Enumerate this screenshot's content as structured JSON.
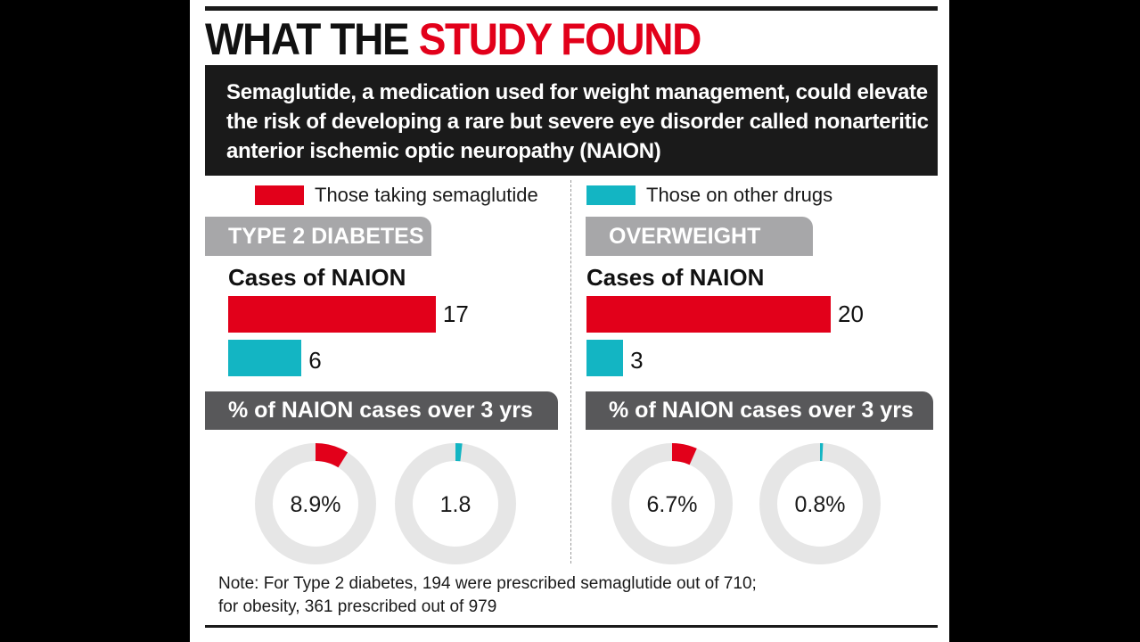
{
  "header": {
    "title_part1": "WHAT THE",
    "title_part2": "STUDY FOUND",
    "subtitle": "Semaglutide, a medication used for weight management, could elevate the risk of developing a rare but severe eye disorder called nonarteritic anterior ischemic optic neuropathy (NAION)"
  },
  "legend": {
    "semaglutide": "Those taking semaglutide",
    "other": "Those on other drugs"
  },
  "colors": {
    "semaglutide": "#e2001a",
    "other": "#13b5c3",
    "donut_track": "#e6e6e6",
    "tab_light": "#a7a7a9",
    "tab_dark": "#58585a"
  },
  "panels": {
    "diabetes": {
      "heading": "TYPE 2 DIABETES",
      "cases_label": "Cases of NAION",
      "pct_heading": "% of NAION cases over 3 yrs"
    },
    "overweight": {
      "heading": "OVERWEIGHT",
      "cases_label": "Cases of NAION",
      "pct_heading": "% of NAION cases over 3 yrs"
    }
  },
  "chart_data": [
    {
      "type": "bar",
      "title": "Cases of NAION",
      "group": "TYPE 2 DIABETES",
      "orientation": "horizontal",
      "series": [
        {
          "name": "Those taking semaglutide",
          "values": [
            17
          ],
          "labels": [
            "17"
          ]
        },
        {
          "name": "Those on other drugs",
          "values": [
            6
          ],
          "labels": [
            "6"
          ]
        }
      ],
      "xlim": [
        0,
        20
      ]
    },
    {
      "type": "bar",
      "title": "Cases of NAION",
      "group": "OVERWEIGHT",
      "orientation": "horizontal",
      "series": [
        {
          "name": "Those taking semaglutide",
          "values": [
            20
          ],
          "labels": [
            "20"
          ]
        },
        {
          "name": "Those on other drugs",
          "values": [
            3
          ],
          "labels": [
            "3"
          ]
        }
      ],
      "xlim": [
        0,
        20
      ]
    },
    {
      "type": "pie",
      "title": "% of NAION cases over 3 yrs",
      "group": "TYPE 2 DIABETES",
      "slices": [
        {
          "name": "Those taking semaglutide",
          "value": 8.9,
          "label": "8.9%"
        },
        {
          "name": "Those on other drugs",
          "value": 1.8,
          "label": "1.8"
        }
      ]
    },
    {
      "type": "pie",
      "title": "% of NAION cases over 3 yrs",
      "group": "OVERWEIGHT",
      "slices": [
        {
          "name": "Those taking semaglutide",
          "value": 6.7,
          "label": "6.7%"
        },
        {
          "name": "Those on other drugs",
          "value": 0.8,
          "label": "0.8%"
        }
      ]
    }
  ],
  "note": {
    "line1": "Note: For Type 2 diabetes, 194 were prescribed semaglutide out of 710;",
    "line2": "for obesity, 361 prescribed out of 979"
  }
}
